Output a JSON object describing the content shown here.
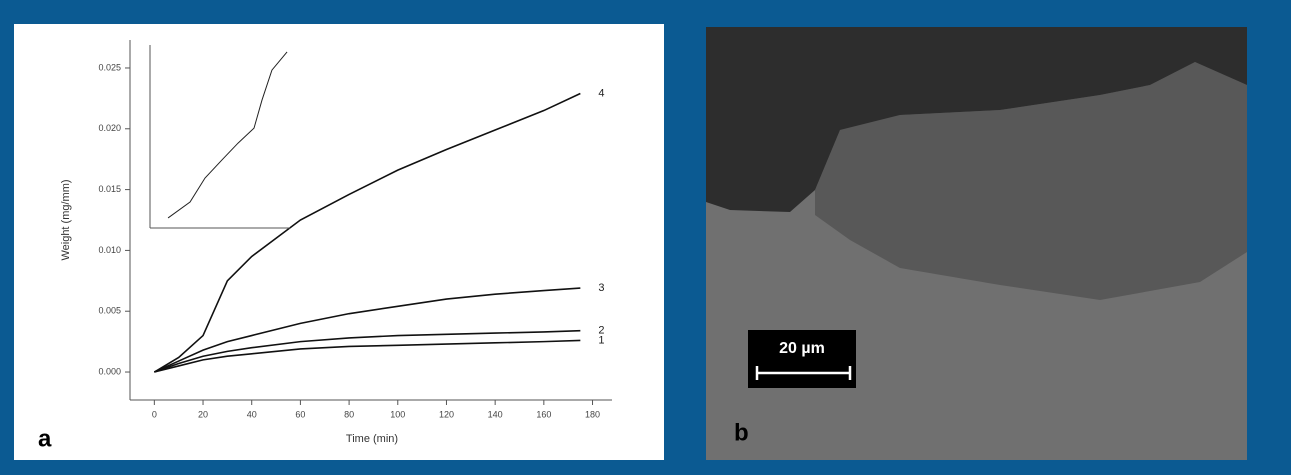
{
  "chart_data": [
    {
      "type": "line",
      "x_label": "Time (min)",
      "y_label": "Weight (mg/mm)",
      "x": [
        0,
        10,
        20,
        30,
        40,
        60,
        80,
        100,
        120,
        140,
        160,
        175
      ],
      "series": [
        {
          "name": "1",
          "color": "#111111",
          "values": [
            0,
            0.0005,
            0.001,
            0.0013,
            0.0015,
            0.0019,
            0.0021,
            0.0022,
            0.0023,
            0.0024,
            0.0025,
            0.0026
          ]
        },
        {
          "name": "2",
          "color": "#111111",
          "values": [
            0,
            0.0007,
            0.0013,
            0.0017,
            0.002,
            0.0025,
            0.0028,
            0.003,
            0.0031,
            0.0032,
            0.0033,
            0.0034
          ]
        },
        {
          "name": "3",
          "color": "#111111",
          "values": [
            0,
            0.0009,
            0.0018,
            0.0025,
            0.003,
            0.004,
            0.0048,
            0.0054,
            0.006,
            0.0064,
            0.0067,
            0.0069
          ]
        },
        {
          "name": "4",
          "color": "#111111",
          "values": [
            0,
            0.0012,
            0.003,
            0.0075,
            0.0095,
            0.0125,
            0.0146,
            0.0166,
            0.0183,
            0.0199,
            0.0215,
            0.0229
          ]
        }
      ],
      "xlim": [
        -10,
        188
      ],
      "ylim": [
        -0.0023,
        0.0273
      ],
      "xticks": [
        0,
        20,
        40,
        60,
        80,
        100,
        120,
        140,
        160,
        180
      ],
      "yticks": [
        {
          "value": 0,
          "label": "0.000"
        },
        {
          "value": 0.005,
          "label": "0.005"
        },
        {
          "value": 0.01,
          "label": "0.010"
        },
        {
          "value": 0.015,
          "label": "0.015"
        },
        {
          "value": 0.02,
          "label": "0.020"
        },
        {
          "value": 0.025,
          "label": "0.025"
        }
      ]
    },
    {
      "type": "line",
      "x": [
        12.9,
        28.6,
        39.3,
        51.4,
        62.9,
        74.3,
        80,
        87.1,
        97.9
      ],
      "series": [
        {
          "color": "#222222",
          "values": [
            5.5,
            14.2,
            27.3,
            37.2,
            46.4,
            54.6,
            69.9,
            86.3,
            96.2
          ]
        }
      ],
      "xlim": [
        0,
        100
      ],
      "ylim": [
        0,
        100
      ]
    }
  ],
  "panels": {
    "a": "a",
    "b": "b"
  },
  "scale_bar": "20 µm"
}
